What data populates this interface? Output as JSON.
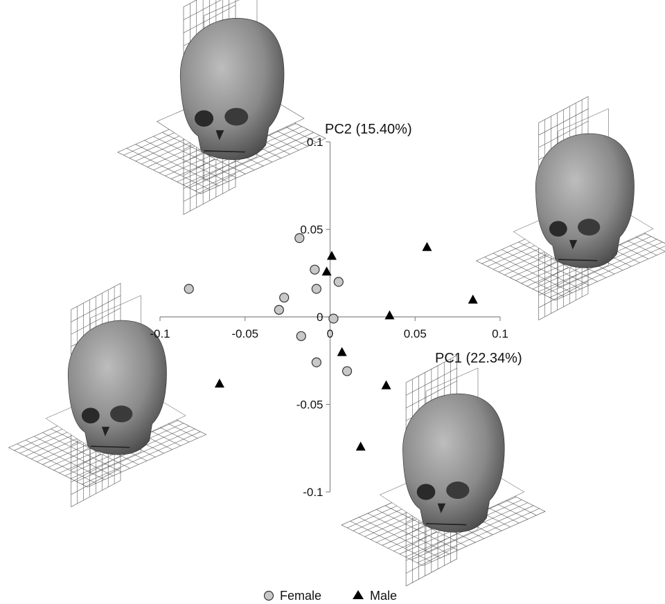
{
  "chart_data": {
    "type": "scatter",
    "xlabel": "PC1 (22.34%)",
    "ylabel": "PC2 (15.40%)",
    "xlim": [
      -0.1,
      0.1
    ],
    "ylim": [
      -0.1,
      0.1
    ],
    "x_ticks": [
      "-0.1",
      "-0.05",
      "0",
      "0.05",
      "0.1"
    ],
    "y_ticks": [
      "0.1",
      "0.05",
      "0",
      "-0.05",
      "-0.1"
    ],
    "grid": false,
    "legend": "bottom",
    "series": [
      {
        "name": "Female",
        "marker": "circle",
        "color": "#c8c8c8",
        "points": [
          {
            "x": -0.083,
            "y": 0.016
          },
          {
            "x": -0.018,
            "y": 0.045
          },
          {
            "x": -0.009,
            "y": 0.027
          },
          {
            "x": -0.008,
            "y": 0.016
          },
          {
            "x": 0.005,
            "y": 0.02
          },
          {
            "x": -0.027,
            "y": 0.011
          },
          {
            "x": -0.03,
            "y": 0.004
          },
          {
            "x": 0.002,
            "y": -0.001
          },
          {
            "x": -0.017,
            "y": -0.011
          },
          {
            "x": -0.008,
            "y": -0.026
          },
          {
            "x": 0.01,
            "y": -0.031
          }
        ]
      },
      {
        "name": "Male",
        "marker": "triangle",
        "color": "#000000",
        "points": [
          {
            "x": 0.001,
            "y": 0.035
          },
          {
            "x": -0.002,
            "y": 0.026
          },
          {
            "x": 0.057,
            "y": 0.04
          },
          {
            "x": 0.084,
            "y": 0.01
          },
          {
            "x": 0.035,
            "y": 0.001
          },
          {
            "x": 0.007,
            "y": -0.02
          },
          {
            "x": 0.033,
            "y": -0.039
          },
          {
            "x": -0.065,
            "y": -0.038
          },
          {
            "x": 0.018,
            "y": -0.074
          }
        ]
      }
    ]
  },
  "legend": {
    "female_label": "Female",
    "male_label": "Male"
  },
  "illustrations": [
    {
      "name": "skull-top-left",
      "description": "skull"
    },
    {
      "name": "skull-right",
      "description": "skull"
    },
    {
      "name": "skull-left",
      "description": "skull"
    },
    {
      "name": "skull-bottom-right",
      "description": "skull"
    }
  ]
}
